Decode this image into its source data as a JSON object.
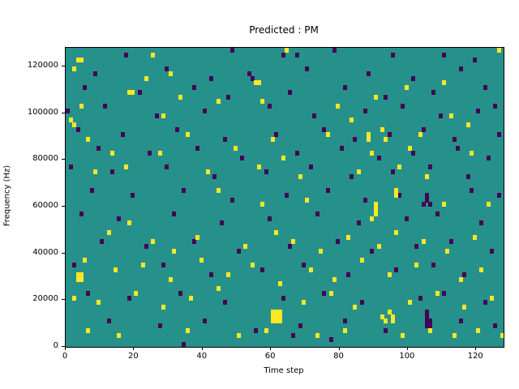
{
  "chart_data": {
    "type": "heatmap",
    "title": "Predicted : PM",
    "xlabel": "Time step",
    "ylabel": "Frequency (Hz)",
    "xlim": [
      0,
      128
    ],
    "ylim": [
      0,
      128000
    ],
    "x_ticks": [
      0,
      20,
      40,
      60,
      80,
      100,
      120
    ],
    "y_ticks": [
      0,
      20000,
      40000,
      60000,
      80000,
      100000,
      120000
    ],
    "grid": {
      "cols": 128,
      "rows": 64
    },
    "legend": "none",
    "colors": {
      "background": "#26918b",
      "high": "#fde725",
      "low": "#440154",
      "axis": "#000000"
    },
    "cell_value_units": "frequency bin = 2000 Hz per row, 1 time step per column",
    "yellow_cells": [
      [
        3,
        61
      ],
      [
        4,
        61
      ],
      [
        25,
        62
      ],
      [
        64,
        63
      ],
      [
        126,
        63
      ],
      [
        2,
        59
      ],
      [
        23,
        57
      ],
      [
        30,
        58
      ],
      [
        55,
        56
      ],
      [
        56,
        56
      ],
      [
        18,
        54
      ],
      [
        19,
        54
      ],
      [
        33,
        53
      ],
      [
        99,
        55
      ],
      [
        110,
        56
      ],
      [
        4,
        51
      ],
      [
        44,
        52
      ],
      [
        57,
        52
      ],
      [
        79,
        51
      ],
      [
        90,
        53
      ],
      [
        1,
        48
      ],
      [
        2,
        47
      ],
      [
        28,
        49
      ],
      [
        83,
        48
      ],
      [
        112,
        49
      ],
      [
        117,
        47
      ],
      [
        6,
        44
      ],
      [
        35,
        45
      ],
      [
        60,
        44
      ],
      [
        76,
        45
      ],
      [
        92,
        46
      ],
      [
        93,
        44
      ],
      [
        103,
        45
      ],
      [
        88,
        44
      ],
      [
        88,
        45
      ],
      [
        13,
        41
      ],
      [
        27,
        41
      ],
      [
        49,
        42
      ],
      [
        63,
        40
      ],
      [
        89,
        41
      ],
      [
        100,
        42
      ],
      [
        118,
        41
      ],
      [
        8,
        37
      ],
      [
        17,
        38
      ],
      [
        41,
        37
      ],
      [
        56,
        38
      ],
      [
        68,
        36
      ],
      [
        85,
        37
      ],
      [
        97,
        38
      ],
      [
        105,
        36
      ],
      [
        89,
        27
      ],
      [
        90,
        28
      ],
      [
        90,
        29
      ],
      [
        90,
        30
      ],
      [
        44,
        33
      ],
      [
        57,
        30
      ],
      [
        70,
        31
      ],
      [
        110,
        30
      ],
      [
        123,
        30
      ],
      [
        96,
        32
      ],
      [
        96,
        33
      ],
      [
        3,
        14
      ],
      [
        3,
        15
      ],
      [
        4,
        14
      ],
      [
        4,
        15
      ],
      [
        12,
        24
      ],
      [
        18,
        26
      ],
      [
        25,
        22
      ],
      [
        31,
        20
      ],
      [
        38,
        23
      ],
      [
        52,
        21
      ],
      [
        61,
        24
      ],
      [
        66,
        22
      ],
      [
        74,
        20
      ],
      [
        82,
        23
      ],
      [
        91,
        21
      ],
      [
        96,
        24
      ],
      [
        104,
        22
      ],
      [
        111,
        20
      ],
      [
        119,
        23
      ],
      [
        5,
        18
      ],
      [
        14,
        16
      ],
      [
        22,
        17
      ],
      [
        30,
        14
      ],
      [
        39,
        18
      ],
      [
        47,
        15
      ],
      [
        54,
        17
      ],
      [
        62,
        13
      ],
      [
        71,
        16
      ],
      [
        78,
        14
      ],
      [
        86,
        18
      ],
      [
        94,
        15
      ],
      [
        102,
        17
      ],
      [
        115,
        14
      ],
      [
        121,
        16
      ],
      [
        2,
        10
      ],
      [
        9,
        9
      ],
      [
        20,
        11
      ],
      [
        28,
        8
      ],
      [
        36,
        10
      ],
      [
        44,
        12
      ],
      [
        60,
        5
      ],
      [
        60,
        6
      ],
      [
        60,
        7
      ],
      [
        61,
        5
      ],
      [
        61,
        6
      ],
      [
        61,
        7
      ],
      [
        62,
        5
      ],
      [
        62,
        6
      ],
      [
        62,
        7
      ],
      [
        69,
        9
      ],
      [
        77,
        11
      ],
      [
        84,
        8
      ],
      [
        92,
        6
      ],
      [
        93,
        5
      ],
      [
        94,
        7
      ],
      [
        95,
        5
      ],
      [
        95,
        6
      ],
      [
        100,
        9
      ],
      [
        108,
        11
      ],
      [
        116,
        8
      ],
      [
        124,
        10
      ],
      [
        6,
        3
      ],
      [
        15,
        2
      ],
      [
        35,
        3
      ],
      [
        50,
        2
      ],
      [
        58,
        3
      ],
      [
        73,
        2
      ],
      [
        81,
        3
      ],
      [
        98,
        2
      ],
      [
        106,
        3
      ],
      [
        113,
        2
      ],
      [
        120,
        3
      ],
      [
        127,
        2
      ]
    ],
    "purple_cells": [
      [
        17,
        62
      ],
      [
        48,
        63
      ],
      [
        63,
        62
      ],
      [
        67,
        62
      ],
      [
        78,
        63
      ],
      [
        95,
        62
      ],
      [
        110,
        62
      ],
      [
        119,
        61
      ],
      [
        8,
        58
      ],
      [
        29,
        59
      ],
      [
        42,
        57
      ],
      [
        53,
        58
      ],
      [
        54,
        57
      ],
      [
        70,
        59
      ],
      [
        88,
        58
      ],
      [
        101,
        57
      ],
      [
        115,
        59
      ],
      [
        5,
        55
      ],
      [
        21,
        54
      ],
      [
        37,
        55
      ],
      [
        47,
        53
      ],
      [
        65,
        54
      ],
      [
        81,
        55
      ],
      [
        93,
        53
      ],
      [
        107,
        54
      ],
      [
        122,
        55
      ],
      [
        0,
        50
      ],
      [
        11,
        51
      ],
      [
        26,
        49
      ],
      [
        40,
        50
      ],
      [
        59,
        51
      ],
      [
        72,
        49
      ],
      [
        87,
        50
      ],
      [
        98,
        51
      ],
      [
        109,
        49
      ],
      [
        120,
        50
      ],
      [
        125,
        51
      ],
      [
        3,
        46
      ],
      [
        16,
        45
      ],
      [
        32,
        46
      ],
      [
        46,
        44
      ],
      [
        61,
        45
      ],
      [
        75,
        46
      ],
      [
        84,
        44
      ],
      [
        94,
        45
      ],
      [
        104,
        46
      ],
      [
        113,
        44
      ],
      [
        126,
        45
      ],
      [
        9,
        42
      ],
      [
        24,
        41
      ],
      [
        38,
        42
      ],
      [
        51,
        40
      ],
      [
        67,
        41
      ],
      [
        80,
        42
      ],
      [
        91,
        40
      ],
      [
        101,
        41
      ],
      [
        114,
        42
      ],
      [
        123,
        40
      ],
      [
        1,
        38
      ],
      [
        13,
        37
      ],
      [
        29,
        38
      ],
      [
        43,
        36
      ],
      [
        58,
        37
      ],
      [
        71,
        38
      ],
      [
        83,
        36
      ],
      [
        95,
        37
      ],
      [
        106,
        38
      ],
      [
        117,
        36
      ],
      [
        7,
        33
      ],
      [
        19,
        32
      ],
      [
        34,
        33
      ],
      [
        48,
        31
      ],
      [
        64,
        32
      ],
      [
        76,
        33
      ],
      [
        87,
        31
      ],
      [
        97,
        32
      ],
      [
        104,
        30
      ],
      [
        105,
        31
      ],
      [
        105,
        32
      ],
      [
        106,
        30
      ],
      [
        118,
        33
      ],
      [
        126,
        32
      ],
      [
        4,
        28
      ],
      [
        15,
        27
      ],
      [
        31,
        28
      ],
      [
        45,
        26
      ],
      [
        59,
        27
      ],
      [
        73,
        28
      ],
      [
        85,
        26
      ],
      [
        99,
        27
      ],
      [
        108,
        28
      ],
      [
        121,
        26
      ],
      [
        10,
        22
      ],
      [
        23,
        21
      ],
      [
        37,
        22
      ],
      [
        50,
        20
      ],
      [
        65,
        21
      ],
      [
        79,
        22
      ],
      [
        89,
        20
      ],
      [
        102,
        21
      ],
      [
        112,
        22
      ],
      [
        124,
        20
      ],
      [
        2,
        17
      ],
      [
        28,
        17
      ],
      [
        42,
        15
      ],
      [
        57,
        16
      ],
      [
        69,
        17
      ],
      [
        82,
        15
      ],
      [
        96,
        16
      ],
      [
        107,
        17
      ],
      [
        116,
        15
      ],
      [
        6,
        11
      ],
      [
        18,
        10
      ],
      [
        33,
        11
      ],
      [
        46,
        9
      ],
      [
        63,
        10
      ],
      [
        75,
        11
      ],
      [
        86,
        9
      ],
      [
        103,
        10
      ],
      [
        110,
        11
      ],
      [
        122,
        9
      ],
      [
        12,
        5
      ],
      [
        27,
        4
      ],
      [
        40,
        5
      ],
      [
        55,
        3
      ],
      [
        68,
        4
      ],
      [
        81,
        5
      ],
      [
        93,
        3
      ],
      [
        105,
        4
      ],
      [
        105,
        5
      ],
      [
        105,
        6
      ],
      [
        105,
        7
      ],
      [
        106,
        4
      ],
      [
        106,
        5
      ],
      [
        115,
        5
      ],
      [
        125,
        4
      ],
      [
        34,
        0
      ],
      [
        66,
        2
      ],
      [
        77,
        1
      ]
    ]
  }
}
